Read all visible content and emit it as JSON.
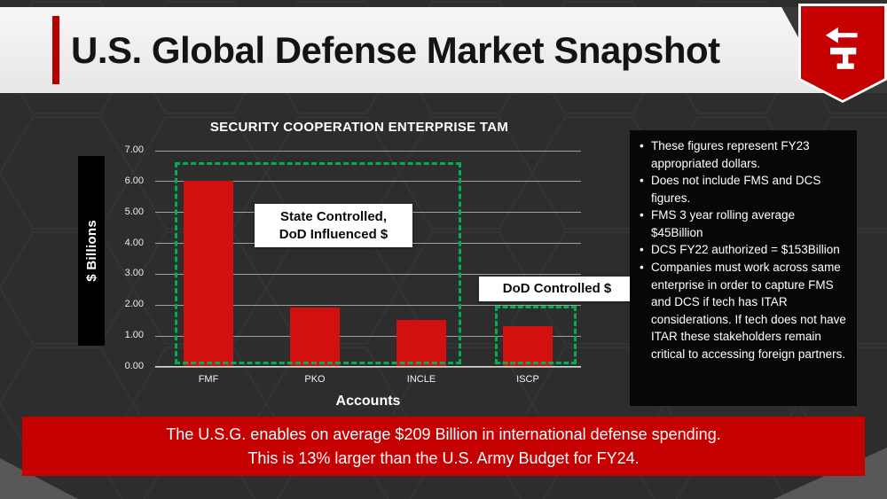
{
  "header": {
    "title": "U.S. Global Defense Market Snapshot"
  },
  "icons": {
    "logo": "anvil-arrow-logo"
  },
  "colors": {
    "accent_red": "#c40000",
    "bar_red": "#d21010",
    "group_green": "#00b050",
    "panel_black": "#070707",
    "background_gray": "#2d2d2d"
  },
  "chart_data": {
    "type": "bar",
    "title": "SECURITY COOPERATION ENTERPRISE TAM",
    "categories": [
      "FMF",
      "PKO",
      "INCLE",
      "ISCP"
    ],
    "values": [
      6.0,
      1.9,
      1.5,
      1.3
    ],
    "xlabel": "Accounts",
    "ylabel": "$ Billions",
    "ylim": [
      0,
      7
    ],
    "ytick_labels": [
      "0.00",
      "1.00",
      "2.00",
      "3.00",
      "4.00",
      "5.00",
      "6.00",
      "7.00"
    ],
    "grid": true,
    "legend": "none",
    "bar_color": "#d21010",
    "annotations": [
      {
        "line1": "State Controlled,",
        "line2": "DoD Influenced $",
        "covers": [
          "FMF",
          "PKO",
          "INCLE"
        ]
      },
      {
        "line1": "DoD Controlled $",
        "covers": [
          "ISCP"
        ]
      }
    ]
  },
  "notes_panel": {
    "bullets": [
      "These figures represent FY23 appropriated dollars.",
      "Does not include FMS and DCS figures.",
      "FMS 3 year rolling average $45Billion",
      "DCS FY22 authorized = $153Billion",
      "Companies must work across same enterprise in order to capture FMS and DCS if tech has ITAR considerations.  If tech does not have ITAR these stakeholders remain critical to accessing foreign partners."
    ]
  },
  "footer": {
    "line1": "The U.S.G. enables on average $209 Billion in international defense spending.",
    "line2": "This is 13% larger than the U.S. Army Budget for FY24."
  }
}
